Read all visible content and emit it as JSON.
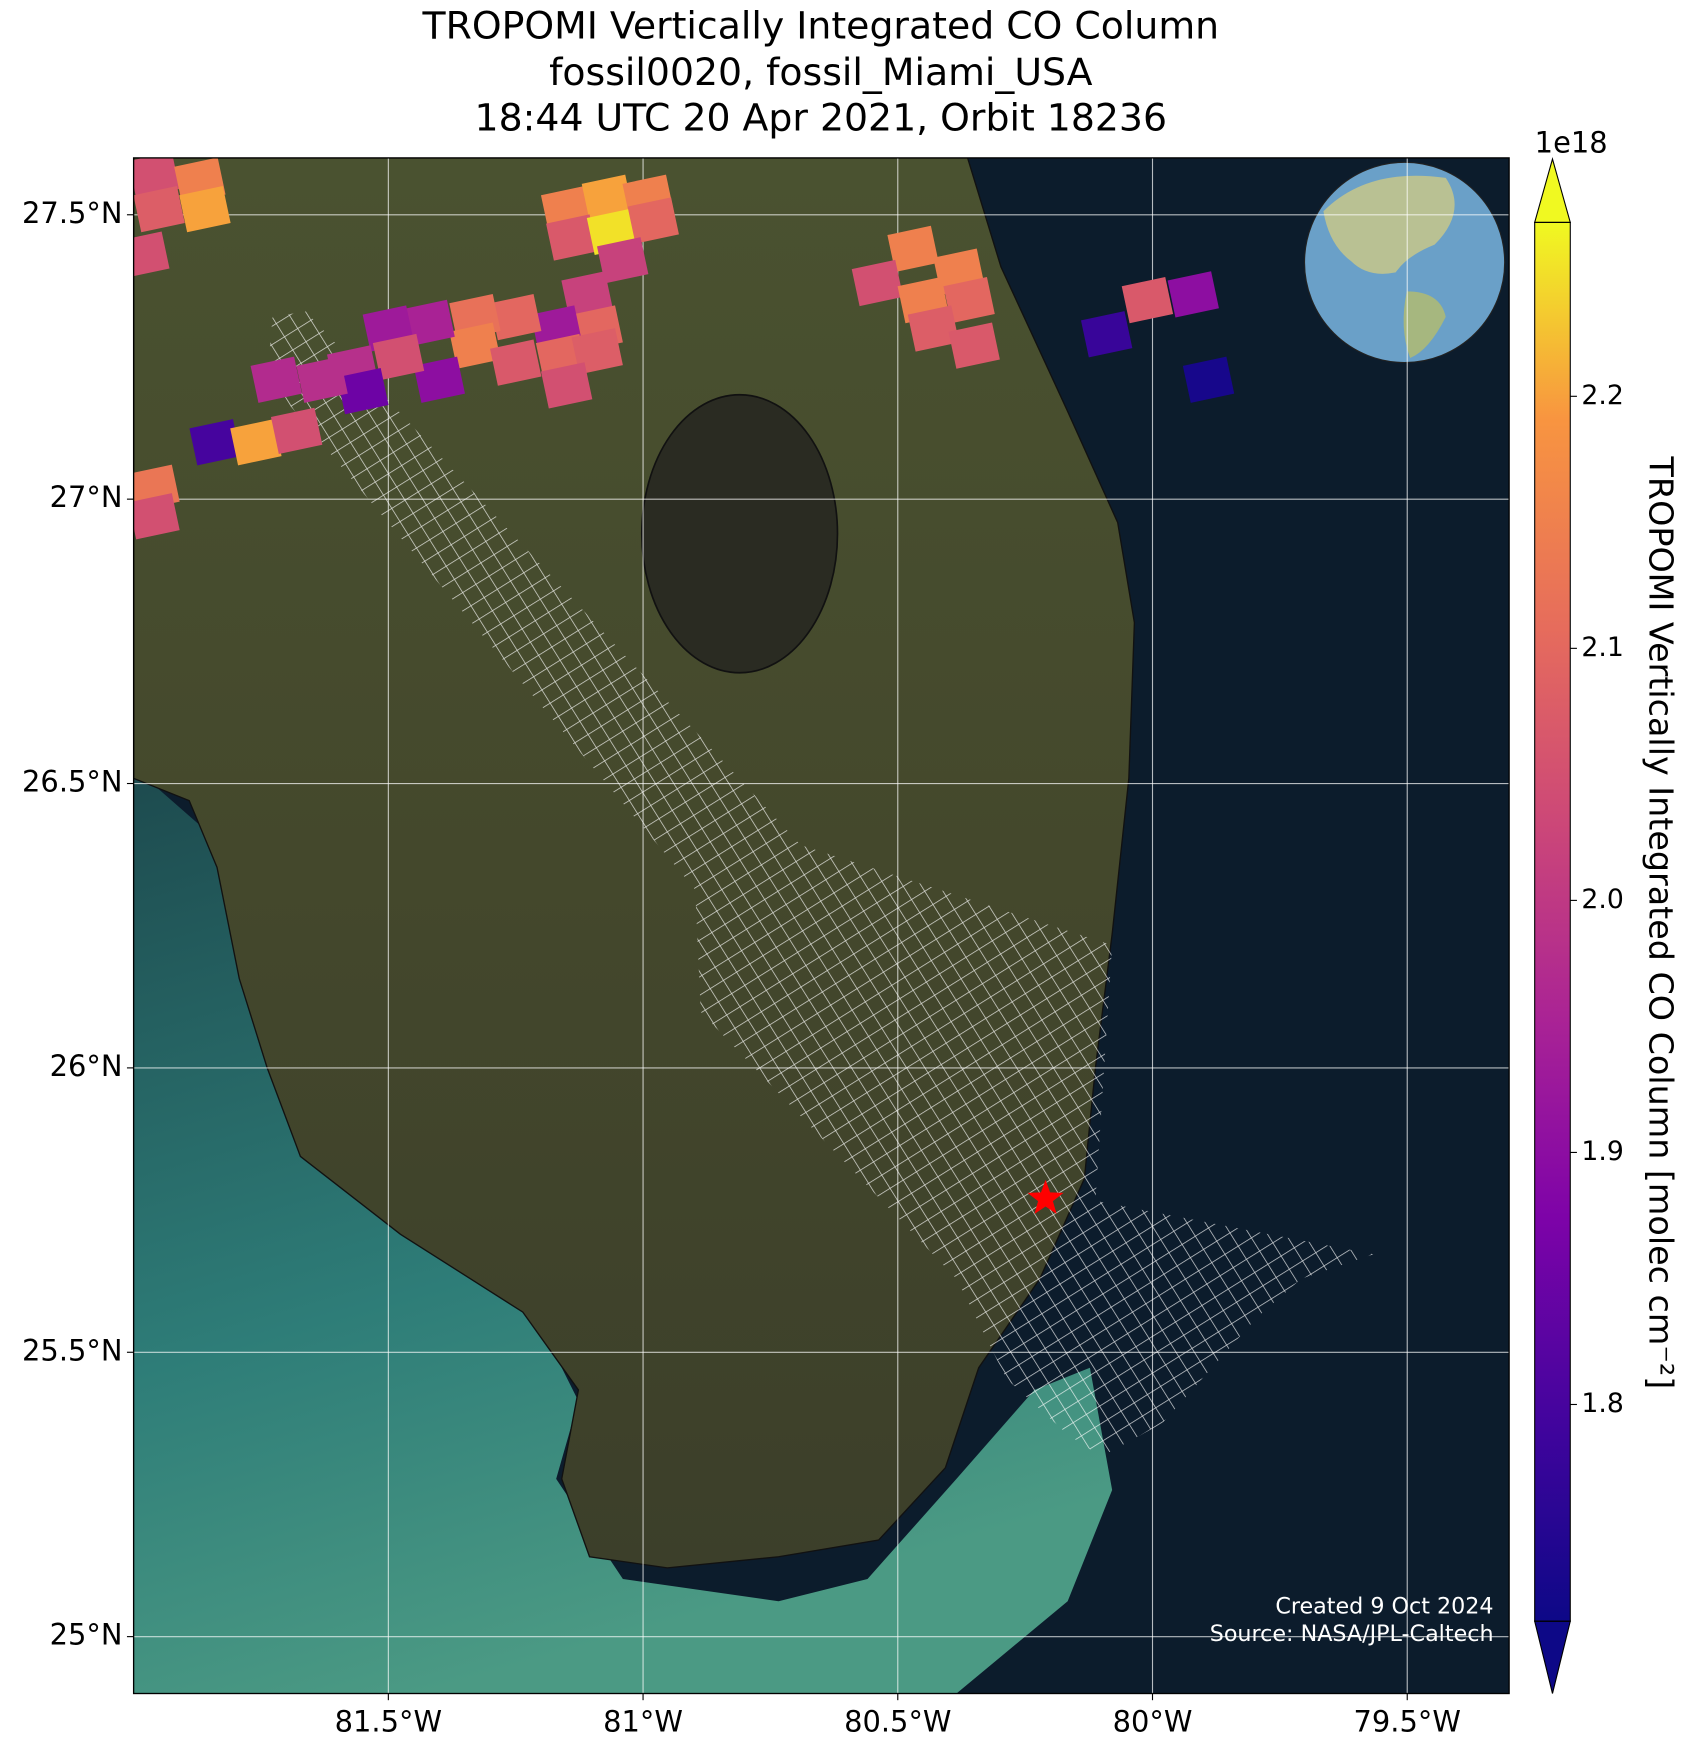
{
  "chart_data": {
    "type": "map",
    "title_lines": [
      "TROPOMI Vertically Integrated CO Column",
      "fossil0020, fossil_Miami_USA",
      "18:44 UTC 20 Apr 2021, Orbit 18236"
    ],
    "xlim": [
      -82.0,
      -79.3
    ],
    "ylim": [
      24.9,
      27.6
    ],
    "xticks": [
      {
        "value": -81.5,
        "label": "81.5°W"
      },
      {
        "value": -81,
        "label": "81°W"
      },
      {
        "value": -80.5,
        "label": "80.5°W"
      },
      {
        "value": -80,
        "label": "80°W"
      },
      {
        "value": -79.5,
        "label": "79.5°W"
      }
    ],
    "yticks": [
      {
        "value": 27.5,
        "label": "27.5°N"
      },
      {
        "value": 27,
        "label": "27°N"
      },
      {
        "value": 26.5,
        "label": "26.5°N"
      },
      {
        "value": 26,
        "label": "26°N"
      },
      {
        "value": 25.5,
        "label": "25.5°N"
      },
      {
        "value": 25,
        "label": "25°N"
      }
    ],
    "grid": true,
    "colormap": "plasma",
    "clim": [
      1.714,
      2.269
    ],
    "colorbar_ticks": [
      1.8,
      1.9,
      2.0,
      2.1,
      2.2
    ],
    "colorbar_offset_label": "1e18",
    "colorbar_label": "TROPOMI Vertically Integrated CO Column [molec cm⁻²]",
    "pixels": {
      "lon": [
        -81.96,
        -81.87,
        -81.95,
        -81.86,
        -81.98,
        -81.15,
        -81.07,
        -80.99,
        -81.14,
        -81.06,
        -80.98,
        -81.04,
        -81.11,
        -81.09,
        -81.17,
        -81.25,
        -81.33,
        -81.33,
        -81.25,
        -81.16,
        -81.09,
        -81.15,
        -81.42,
        -81.5,
        -81.4,
        -81.48,
        -81.57,
        -81.55,
        -81.63,
        -81.72,
        -81.84,
        -81.76,
        -81.68,
        -81.96,
        -81.96,
        -80.47,
        -80.38,
        -80.54,
        -80.45,
        -80.36,
        -80.43,
        -80.35,
        -80.09,
        -80.01,
        -79.92,
        -79.89
      ],
      "lat": [
        27.57,
        27.56,
        27.51,
        27.51,
        27.43,
        27.51,
        27.53,
        27.53,
        27.46,
        27.47,
        27.49,
        27.42,
        27.36,
        27.3,
        27.3,
        27.32,
        27.32,
        27.27,
        27.24,
        27.25,
        27.26,
        27.2,
        27.31,
        27.3,
        27.21,
        27.25,
        27.23,
        27.19,
        27.21,
        27.21,
        27.1,
        27.1,
        27.12,
        27.02,
        26.97,
        27.44,
        27.4,
        27.38,
        27.35,
        27.35,
        27.3,
        27.27,
        27.29,
        27.35,
        27.36,
        27.21
      ],
      "co": [
        2.05,
        2.15,
        2.08,
        2.2,
        2.05,
        2.15,
        2.2,
        2.15,
        2.07,
        2.25,
        2.1,
        2.02,
        2.02,
        2.1,
        1.93,
        2.1,
        2.12,
        2.15,
        2.07,
        2.1,
        2.08,
        2.05,
        1.95,
        1.93,
        1.9,
        2.05,
        1.98,
        1.85,
        1.98,
        1.97,
        1.8,
        2.2,
        2.05,
        2.13,
        2.05,
        2.15,
        2.15,
        2.05,
        2.15,
        2.1,
        2.08,
        2.07,
        1.78,
        2.07,
        1.9,
        1.73
      ]
    },
    "site": {
      "lon": -80.21,
      "lat": 25.77
    },
    "footer_lines": [
      "Created 9 Oct 2024",
      "Source: NASA/JPL-Caltech"
    ]
  }
}
